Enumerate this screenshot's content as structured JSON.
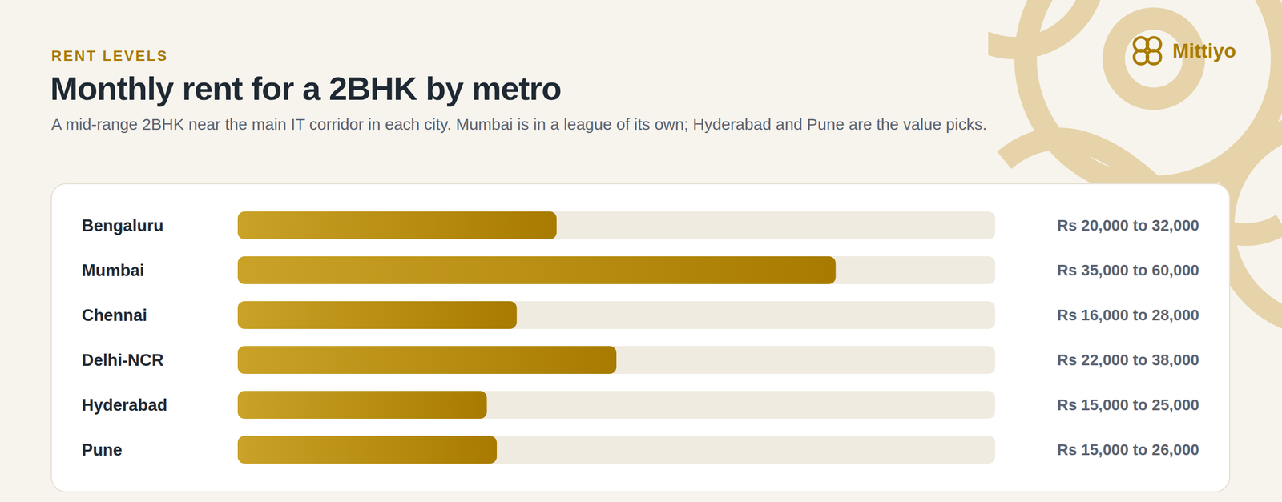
{
  "chart_data": {
    "type": "bar",
    "orientation": "horizontal",
    "kicker": "RENT LEVELS",
    "title": "Monthly rent for a 2BHK by metro",
    "subtitle": "A mid-range 2BHK near the main IT corridor in each city. Mumbai is in a league of its own; Hyderabad and Pune are the value picks.",
    "brand": "Mittiyo",
    "categories": [
      "Bengaluru",
      "Mumbai",
      "Chennai",
      "Delhi-NCR",
      "Hyderabad",
      "Pune"
    ],
    "values": [
      32000,
      60000,
      28000,
      38000,
      25000,
      26000
    ],
    "value_labels": [
      "Rs 20,000 to 32,000",
      "Rs 35,000 to 60,000",
      "Rs 16,000 to 28,000",
      "Rs 22,000 to 38,000",
      "Rs 15,000 to 25,000",
      "Rs 15,000 to 26,000"
    ],
    "data_labels": true,
    "xlim": [
      0,
      76000
    ],
    "tick_labels": false,
    "grid": false,
    "color": "#a87b00"
  }
}
